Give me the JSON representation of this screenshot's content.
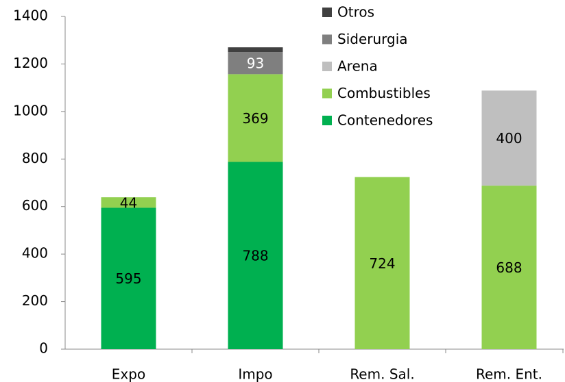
{
  "chart_data": {
    "type": "stacked_bar",
    "categories": [
      "Expo",
      "Impo",
      "Rem. Sal.",
      "Rem. Ent."
    ],
    "series": [
      {
        "name": "Contenedores",
        "color": "#00b050",
        "values": [
          595,
          788,
          null,
          null
        ]
      },
      {
        "name": "Combustibles",
        "color": "#92d050",
        "values": [
          44,
          369,
          724,
          688
        ]
      },
      {
        "name": "Arena",
        "color": "#bfbfbf",
        "values": [
          null,
          null,
          null,
          400
        ]
      },
      {
        "name": "Siderurgia",
        "color": "#7f7f7f",
        "values": [
          null,
          93,
          null,
          null
        ]
      },
      {
        "name": "Otros",
        "color": "#404040",
        "values": [
          null,
          20,
          null,
          null
        ],
        "show_labels": false
      }
    ],
    "ylim": [
      0,
      1400
    ],
    "yticks": [
      0,
      200,
      400,
      600,
      800,
      1000,
      1200,
      1400
    ],
    "legend": "top-right"
  }
}
